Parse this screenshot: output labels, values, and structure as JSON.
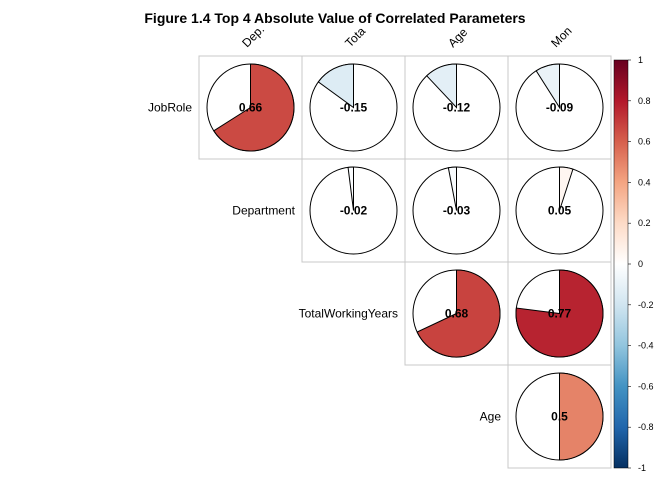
{
  "chart_data": {
    "type": "heatmap",
    "title": "Figure 1.4 Top 4 Absolute Value of Correlated Parameters",
    "col_labels": [
      "Dep.",
      "Tota",
      "Age",
      "Mon"
    ],
    "row_labels": [
      "JobRole",
      "Department",
      "TotalWorkingYears",
      "Age"
    ],
    "cells": [
      {
        "row": 0,
        "col": 0,
        "value": 0.66,
        "label": "0.66"
      },
      {
        "row": 0,
        "col": 1,
        "value": -0.15,
        "label": "-0.15"
      },
      {
        "row": 0,
        "col": 2,
        "value": -0.12,
        "label": "-0.12"
      },
      {
        "row": 0,
        "col": 3,
        "value": -0.09,
        "label": "-0.09"
      },
      {
        "row": 1,
        "col": 1,
        "value": -0.02,
        "label": "-0.02"
      },
      {
        "row": 1,
        "col": 2,
        "value": -0.03,
        "label": "-0.03"
      },
      {
        "row": 1,
        "col": 3,
        "value": 0.05,
        "label": "0.05"
      },
      {
        "row": 2,
        "col": 2,
        "value": 0.68,
        "label": "0.68"
      },
      {
        "row": 2,
        "col": 3,
        "value": 0.77,
        "label": "0.77"
      },
      {
        "row": 3,
        "col": 3,
        "value": 0.5,
        "label": "0.5"
      }
    ],
    "colorbar": {
      "range": [
        -1,
        1
      ],
      "ticks": [
        "1",
        "0.8",
        "0.6",
        "0.4",
        "0.2",
        "0",
        "-0.2",
        "-0.4",
        "-0.6",
        "-0.8",
        "-1"
      ],
      "colors": [
        "#67001F",
        "#B2182B",
        "#D6604D",
        "#F4A582",
        "#FDDBC7",
        "#FFFFFF",
        "#D1E5F0",
        "#92C5DE",
        "#4393C3",
        "#2166AC",
        "#053061"
      ]
    }
  }
}
